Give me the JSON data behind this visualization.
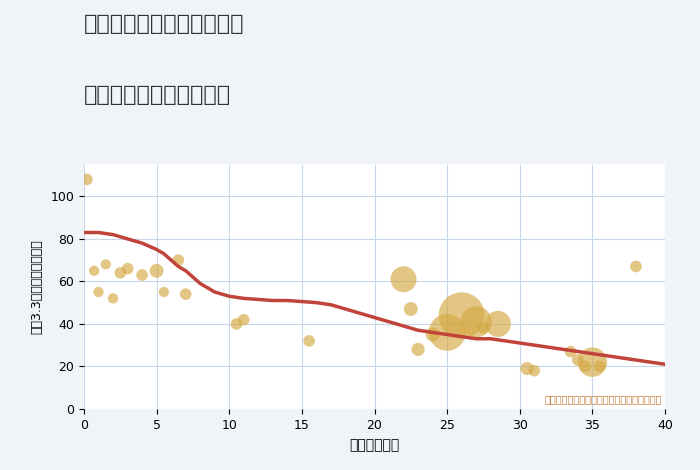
{
  "title_line1": "兵庫県姫路市安富町三森の",
  "title_line2": "築年数別中古戸建て価格",
  "xlabel": "築年数（年）",
  "ylabel": "坪（3.3㎡）単価（万円）",
  "annotation": "円の大きさは、取引のあった物件面積を示す",
  "xlim": [
    0,
    40
  ],
  "ylim": [
    0,
    115
  ],
  "xticks": [
    0,
    5,
    10,
    15,
    20,
    25,
    30,
    35,
    40
  ],
  "yticks": [
    0,
    20,
    40,
    60,
    80,
    100
  ],
  "background_color": "#f0f4f8",
  "plot_bg_color": "#ffffff",
  "grid_color": "#c8d8e8",
  "bubble_color": "#d4a843",
  "bubble_alpha": 0.65,
  "line_color": "#c0443a",
  "line_width": 2.5,
  "scatter_x": [
    0.2,
    0.7,
    1.0,
    1.5,
    2.0,
    2.5,
    3.0,
    4.0,
    5.0,
    5.5,
    6.5,
    7.0,
    10.5,
    11.0,
    15.5,
    22.0,
    22.5,
    23.0,
    24.0,
    25.0,
    26.0,
    27.0,
    27.5,
    28.5,
    30.5,
    31.0,
    33.5,
    34.0,
    34.5,
    35.0,
    35.5,
    38.0
  ],
  "scatter_y": [
    108,
    65,
    55,
    68,
    52,
    64,
    66,
    63,
    65,
    55,
    70,
    54,
    40,
    42,
    32,
    61,
    47,
    28,
    35,
    36,
    44,
    41,
    38,
    40,
    19,
    18,
    27,
    23,
    20,
    22,
    20,
    67
  ],
  "scatter_size": [
    70,
    55,
    55,
    55,
    55,
    70,
    70,
    70,
    100,
    55,
    70,
    70,
    70,
    70,
    70,
    350,
    100,
    90,
    100,
    700,
    1100,
    500,
    70,
    350,
    90,
    70,
    70,
    70,
    70,
    450,
    70,
    70
  ],
  "line_x": [
    0,
    0.5,
    1,
    1.5,
    2,
    2.5,
    3,
    3.5,
    4,
    4.5,
    5,
    5.5,
    6,
    6.5,
    7,
    7.5,
    8,
    8.5,
    9,
    9.5,
    10,
    11,
    12,
    13,
    14,
    15,
    16,
    17,
    18,
    19,
    20,
    21,
    22,
    23,
    24,
    25,
    26,
    27,
    28,
    29,
    30,
    31,
    32,
    33,
    34,
    35,
    36,
    37,
    38,
    39,
    40
  ],
  "line_y": [
    83,
    83,
    83,
    82.5,
    82,
    81,
    80,
    79,
    78,
    76.5,
    75,
    73,
    70,
    67,
    65,
    62,
    59,
    57,
    55,
    54,
    53,
    52,
    51.5,
    51,
    51,
    50.5,
    50,
    49,
    47,
    45,
    43,
    41,
    39,
    37,
    36,
    35,
    34,
    33,
    33,
    32,
    31,
    30,
    29,
    28,
    27,
    26,
    25,
    24,
    23,
    22,
    21
  ]
}
